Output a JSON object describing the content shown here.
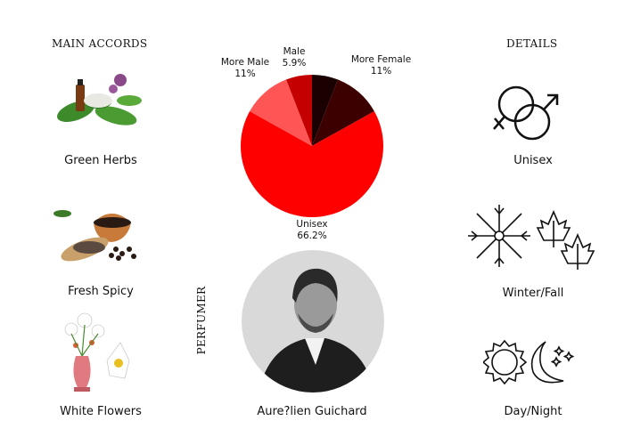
{
  "left": {
    "heading": "MAIN ACCORDS",
    "accords": [
      {
        "label": "Green Herbs",
        "icon": "green-herbs-image"
      },
      {
        "label": "Fresh Spicy",
        "icon": "fresh-spicy-image"
      },
      {
        "label": "White Flowers",
        "icon": "white-flowers-image"
      }
    ]
  },
  "right": {
    "heading": "DETAILS",
    "items": [
      {
        "label": "Unisex",
        "icon": "gender-symbols-icon"
      },
      {
        "label": "Winter/Fall",
        "icon": "snowflake-leaves-icon"
      },
      {
        "label": "Day/Night",
        "icon": "sun-moon-icon"
      }
    ]
  },
  "perfumer": {
    "heading": "PERFUMER",
    "name": "Aure?lien Guichard"
  },
  "chart_data": {
    "type": "pie",
    "start": "top",
    "direction": "clockwise",
    "slices": [
      {
        "label": "",
        "value_label": "",
        "value": 5.9,
        "color": "#1a0000"
      },
      {
        "label": "More Female",
        "value_label": "11%",
        "value": 11,
        "color": "#3d0000"
      },
      {
        "label": "Unisex",
        "value_label": "66.2%",
        "value": 66.2,
        "color": "#ff0000"
      },
      {
        "label": "More Male",
        "value_label": "11%",
        "value": 11,
        "color": "#ff5555"
      },
      {
        "label": "Male",
        "value_label": "5.9%",
        "value": 5.9,
        "color": "#c40000"
      }
    ]
  }
}
